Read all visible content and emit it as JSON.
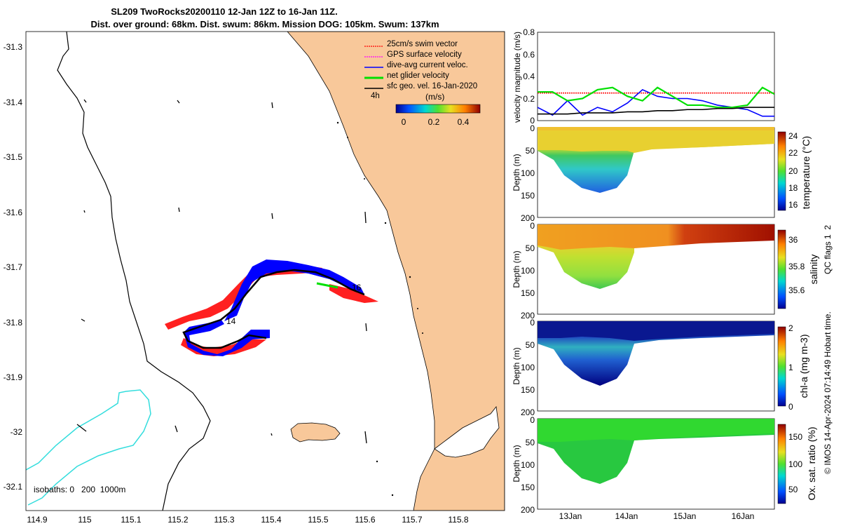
{
  "title": {
    "line1": "SL209 TwoRocks20200110 12-Jan 12Z to 16-Jan 11Z.",
    "line2": "Dist. over ground: 68km. Dist. swum: 86km. Mission DOG: 105km. Swum: 137km"
  },
  "colors": {
    "land": "#f8c89a",
    "swim_vector": "#ff0000",
    "dive_avg": "#0000ff",
    "net_glider": "#00e000",
    "gps": "#ff00ff",
    "sfc_geo": "#000000",
    "isobath_200": "#000000",
    "isobath_1000": "#33dddd"
  },
  "map": {
    "legend": [
      {
        "label": "25cm/s swim vector",
        "color": "#ff0000",
        "style": "dotted"
      },
      {
        "label": "GPS surface velocity",
        "color": "#ff00ff",
        "style": "dotted"
      },
      {
        "label": "dive-avg current veloc.",
        "color": "#0000ff",
        "style": "solid"
      },
      {
        "label": "net glider velocity",
        "color": "#00e000",
        "style": "solid"
      },
      {
        "label": "sfc geo. vel. 16-Jan-2020",
        "color": "#000000",
        "style": "solid"
      }
    ],
    "legend_4h": "4h",
    "colorbar_label": "(m/s)",
    "colorbar_ticks": [
      "0",
      "0.2",
      "0.4"
    ],
    "isobaths_text": "isobaths: 0   200  1000m",
    "day_labels": [
      "14",
      "16"
    ],
    "lon_ticks": [
      "114.9",
      "115",
      "115.1",
      "115.2",
      "115.3",
      "115.4",
      "115.5",
      "115.6",
      "115.7",
      "115.8"
    ],
    "lat_ticks": [
      "-31.3",
      "-31.4",
      "-31.5",
      "-31.6",
      "-31.7",
      "-31.8",
      "-31.9",
      "-32",
      "-32.1"
    ]
  },
  "chart_data": [
    {
      "type": "line",
      "ylabel": "velocity magnitude (m/s)",
      "ylim": [
        0,
        0.8
      ],
      "yticks": [
        "0",
        "0.2",
        "0.4",
        "0.6",
        "0.8"
      ],
      "x": [
        12.5,
        12.75,
        13.0,
        13.25,
        13.5,
        13.75,
        14.0,
        14.25,
        14.5,
        14.75,
        15.0,
        15.25,
        15.5,
        15.75,
        16.0,
        16.25,
        16.45
      ],
      "series": [
        {
          "name": "25cm/s swim vector",
          "color": "#ff0000",
          "values": [
            0.25,
            0.25,
            0.25,
            0.25,
            0.25,
            0.25,
            0.25,
            0.25,
            0.25,
            0.25,
            0.25,
            0.25,
            0.25,
            0.25,
            0.25,
            0.25,
            0.25
          ]
        },
        {
          "name": "dive-avg current veloc.",
          "color": "#0000ff",
          "values": [
            0.12,
            0.05,
            0.18,
            0.05,
            0.12,
            0.08,
            0.16,
            0.28,
            0.22,
            0.2,
            0.2,
            0.18,
            0.14,
            0.12,
            0.1,
            0.04,
            0.04
          ]
        },
        {
          "name": "net glider velocity",
          "color": "#00e000",
          "values": [
            0.26,
            0.26,
            0.18,
            0.2,
            0.28,
            0.3,
            0.22,
            0.18,
            0.3,
            0.22,
            0.14,
            0.14,
            0.12,
            0.12,
            0.14,
            0.3,
            0.24
          ]
        },
        {
          "name": "sfc geo. vel. 16-Jan-2020",
          "color": "#000000",
          "values": [
            0.06,
            0.06,
            0.06,
            0.07,
            0.07,
            0.07,
            0.08,
            0.08,
            0.09,
            0.09,
            0.1,
            0.1,
            0.11,
            0.11,
            0.12,
            0.12,
            0.12
          ]
        }
      ]
    },
    {
      "type": "heatmap",
      "ylabel": "Depth (m)",
      "variable": "temperature (°C)",
      "ylim": [
        200,
        0
      ],
      "yticks": [
        "0",
        "50",
        "100",
        "150",
        "200"
      ],
      "colorbar_ticks": [
        "16",
        "18",
        "20",
        "22",
        "24"
      ],
      "clim": [
        15,
        24.5
      ],
      "surface_value": 21.5,
      "deep_value": 16.5
    },
    {
      "type": "heatmap",
      "ylabel": "Depth (m)",
      "variable": "salinity",
      "ylim": [
        200,
        0
      ],
      "yticks": [
        "0",
        "50",
        "100",
        "150",
        "200"
      ],
      "colorbar_ticks": [
        "35.6",
        "35.8",
        "36"
      ],
      "clim": [
        35.5,
        36.1
      ],
      "surface_value": 36.0,
      "deep_value": 35.7
    },
    {
      "type": "heatmap",
      "ylabel": "Depth (m)",
      "variable": "chl-a (mg m-3)",
      "ylim": [
        200,
        0
      ],
      "yticks": [
        "0",
        "50",
        "100",
        "150",
        "200"
      ],
      "colorbar_ticks": [
        "0",
        "1",
        "2"
      ],
      "clim": [
        0,
        2
      ],
      "surface_value": 0.1,
      "deep_value": 0.3
    },
    {
      "type": "heatmap",
      "ylabel": "Depth (m)",
      "variable": "Ox. sat. ratio (%)",
      "ylim": [
        200,
        0
      ],
      "yticks": [
        "0",
        "50",
        "100",
        "150",
        "200"
      ],
      "colorbar_ticks": [
        "50",
        "100",
        "150"
      ],
      "clim": [
        25,
        175
      ],
      "surface_value": 100,
      "deep_value": 95
    }
  ],
  "time_axis": {
    "ticks": [
      "13Jan",
      "14Jan",
      "15Jan",
      "16Jan"
    ]
  },
  "side_note": {
    "qc": "QC flags 1  2",
    "credit": "© IMOS 14-Apr-2024 07:14:49 Hobart time."
  }
}
